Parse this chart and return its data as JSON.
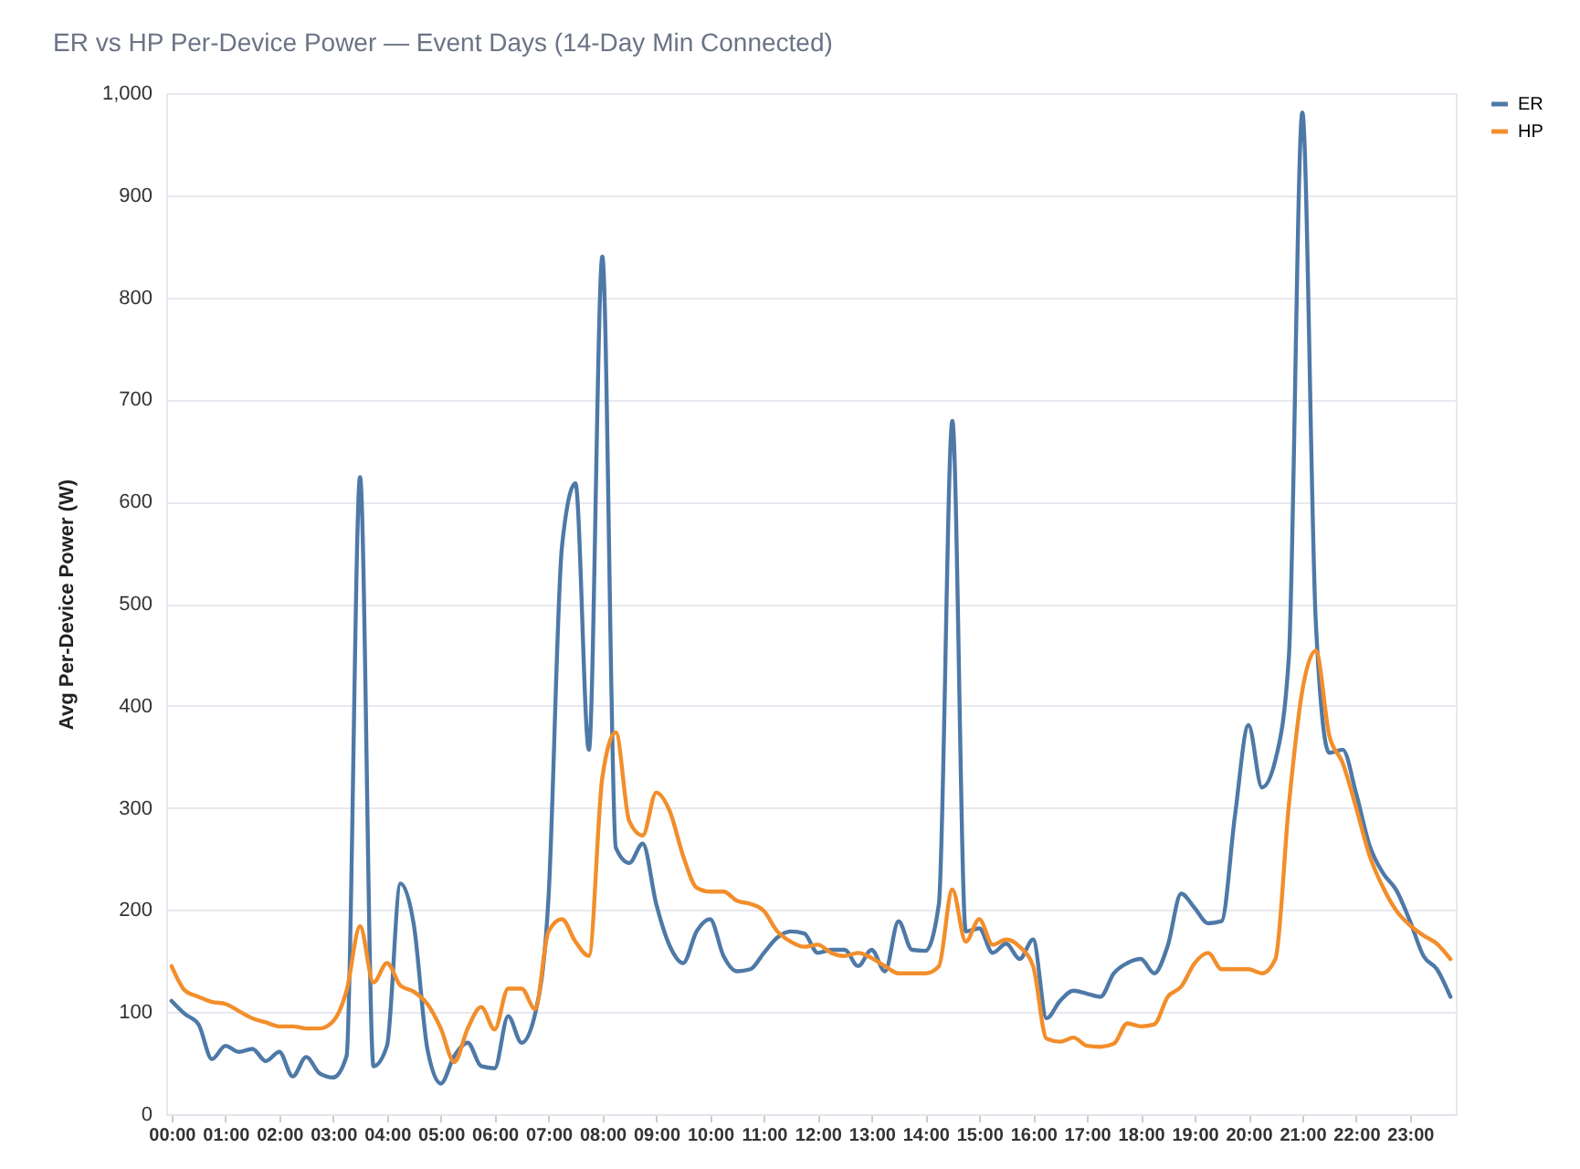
{
  "chart_data": {
    "type": "line",
    "title": "ER vs HP Per-Device Power — Event Days (14-Day Min Connected)",
    "ylabel": "Avg Per-Device Power (W)",
    "x": [
      0,
      0.25,
      0.5,
      0.75,
      1,
      1.25,
      1.5,
      1.75,
      2,
      2.25,
      2.5,
      2.75,
      3,
      3.25,
      3.5,
      3.75,
      4,
      4.25,
      4.5,
      4.75,
      5,
      5.25,
      5.5,
      5.75,
      6,
      6.25,
      6.5,
      6.75,
      7,
      7.25,
      7.5,
      7.75,
      8,
      8.25,
      8.5,
      8.75,
      9,
      9.25,
      9.5,
      9.75,
      10,
      10.25,
      10.5,
      10.75,
      11,
      11.25,
      11.5,
      11.75,
      12,
      12.25,
      12.5,
      12.75,
      13,
      13.25,
      13.5,
      13.75,
      14,
      14.25,
      14.5,
      14.75,
      15,
      15.25,
      15.5,
      15.75,
      16,
      16.25,
      16.5,
      16.75,
      17,
      17.25,
      17.5,
      17.75,
      18,
      18.25,
      18.5,
      18.75,
      19,
      19.25,
      19.5,
      19.75,
      20,
      20.25,
      20.5,
      20.75,
      21,
      21.25,
      21.5,
      21.75,
      22,
      22.25,
      22.5,
      22.75,
      23,
      23.25,
      23.5,
      23.75
    ],
    "series": [
      {
        "name": "ER",
        "color": "#4e79a7",
        "values": [
          111,
          98,
          88,
          54,
          67,
          61,
          64,
          52,
          61,
          37,
          56,
          40,
          36,
          57,
          624,
          47,
          67,
          226,
          185,
          64,
          30,
          57,
          70,
          47,
          45,
          96,
          70,
          98,
          212,
          556,
          618,
          357,
          840,
          261,
          246,
          265,
          206,
          165,
          148,
          179,
          191,
          155,
          140,
          142,
          158,
          173,
          179,
          177,
          158,
          161,
          161,
          145,
          161,
          140,
          189,
          161,
          160,
          206,
          679,
          179,
          182,
          158,
          167,
          152,
          171,
          94,
          111,
          121,
          118,
          115,
          138,
          148,
          152,
          138,
          165,
          216,
          202,
          187,
          189,
          293,
          381,
          320,
          347,
          448,
          981,
          482,
          354,
          357,
          314,
          263,
          236,
          219,
          189,
          155,
          142,
          115
        ]
      },
      {
        "name": "HP",
        "color": "#f28e2b",
        "values": [
          145,
          121,
          115,
          110,
          108,
          101,
          94,
          90,
          86,
          86,
          84,
          84,
          91,
          121,
          184,
          129,
          148,
          126,
          120,
          108,
          84,
          51,
          84,
          105,
          83,
          123,
          123,
          103,
          179,
          191,
          169,
          155,
          330,
          374,
          287,
          273,
          315,
          297,
          253,
          222,
          218,
          218,
          209,
          206,
          199,
          179,
          169,
          164,
          166,
          158,
          155,
          158,
          153,
          145,
          138,
          138,
          138,
          145,
          220,
          169,
          191,
          166,
          171,
          164,
          145,
          74,
          71,
          75,
          67,
          66,
          69,
          89,
          86,
          88,
          115,
          125,
          148,
          158,
          142,
          142,
          142,
          138,
          152,
          303,
          415,
          454,
          371,
          344,
          300,
          253,
          222,
          199,
          185,
          175,
          167,
          152
        ]
      }
    ],
    "xlim": [
      -0.1,
      23.85
    ],
    "xticks": [
      {
        "value": 0,
        "label": "00:00"
      },
      {
        "value": 1,
        "label": "01:00"
      },
      {
        "value": 2,
        "label": "02:00"
      },
      {
        "value": 3,
        "label": "03:00"
      },
      {
        "value": 4,
        "label": "04:00"
      },
      {
        "value": 5,
        "label": "05:00"
      },
      {
        "value": 6,
        "label": "06:00"
      },
      {
        "value": 7,
        "label": "07:00"
      },
      {
        "value": 8,
        "label": "08:00"
      },
      {
        "value": 9,
        "label": "09:00"
      },
      {
        "value": 10,
        "label": "10:00"
      },
      {
        "value": 11,
        "label": "11:00"
      },
      {
        "value": 12,
        "label": "12:00"
      },
      {
        "value": 13,
        "label": "13:00"
      },
      {
        "value": 14,
        "label": "14:00"
      },
      {
        "value": 15,
        "label": "15:00"
      },
      {
        "value": 16,
        "label": "16:00"
      },
      {
        "value": 17,
        "label": "17:00"
      },
      {
        "value": 18,
        "label": "18:00"
      },
      {
        "value": 19,
        "label": "19:00"
      },
      {
        "value": 20,
        "label": "20:00"
      },
      {
        "value": 21,
        "label": "21:00"
      },
      {
        "value": 22,
        "label": "22:00"
      },
      {
        "value": 23,
        "label": "23:00"
      }
    ],
    "ylim": [
      0,
      1000
    ],
    "yticks": [
      0,
      100,
      200,
      300,
      400,
      500,
      600,
      700,
      800,
      900,
      {
        "value": 1000,
        "label": "1,000"
      }
    ],
    "grid": "y",
    "legend": "top right",
    "marker": "none",
    "line_style": "solid"
  }
}
